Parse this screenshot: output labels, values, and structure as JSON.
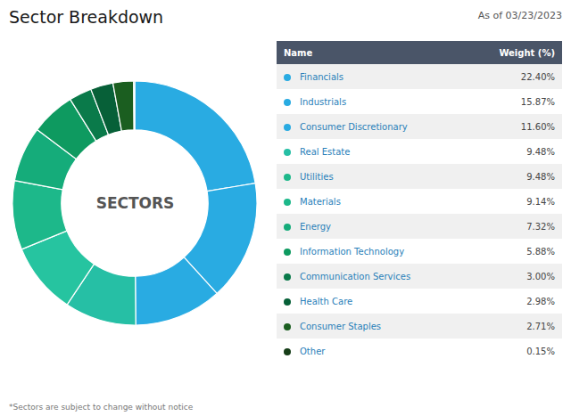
{
  "chart_data": {
    "type": "donut",
    "title": "Sector Breakdown",
    "subtitle": "As of 03/23/2023",
    "center_label": "SECTORS",
    "footnote": "*Sectors are subject to change without notice",
    "column_labels": [
      "Name",
      "Weight (%)"
    ],
    "categories": [
      "Financials",
      "Industrials",
      "Consumer Discretionary",
      "Real Estate",
      "Utilities",
      "Materials",
      "Energy",
      "Information Technology",
      "Communication Services",
      "Health Care",
      "Consumer Staples",
      "Other"
    ],
    "values": [
      22.4,
      15.87,
      11.6,
      9.48,
      9.48,
      9.14,
      7.32,
      5.88,
      3.0,
      2.98,
      2.71,
      0.15
    ],
    "value_labels": [
      "22.40%",
      "15.87%",
      "11.60%",
      "9.48%",
      "9.48%",
      "9.14%",
      "7.32%",
      "5.88%",
      "3.00%",
      "2.98%",
      "2.71%",
      "0.15%"
    ],
    "colors": [
      "#29ABE2",
      "#29ABE2",
      "#29ABE2",
      "#26BFA5",
      "#26C4A0",
      "#1DB88A",
      "#15AC7A",
      "#0E9A60",
      "#0A7A4A",
      "#076038",
      "#1B5E20",
      "#163D18"
    ],
    "dot_colors": [
      "#29ABE2",
      "#29ABE2",
      "#29ABE2",
      "#26BFA5",
      "#1DB88A",
      "#1DB88A",
      "#15AC7A",
      "#0E9A60",
      "#0A7A4A",
      "#076038",
      "#1B5E20",
      "#163D18"
    ]
  }
}
